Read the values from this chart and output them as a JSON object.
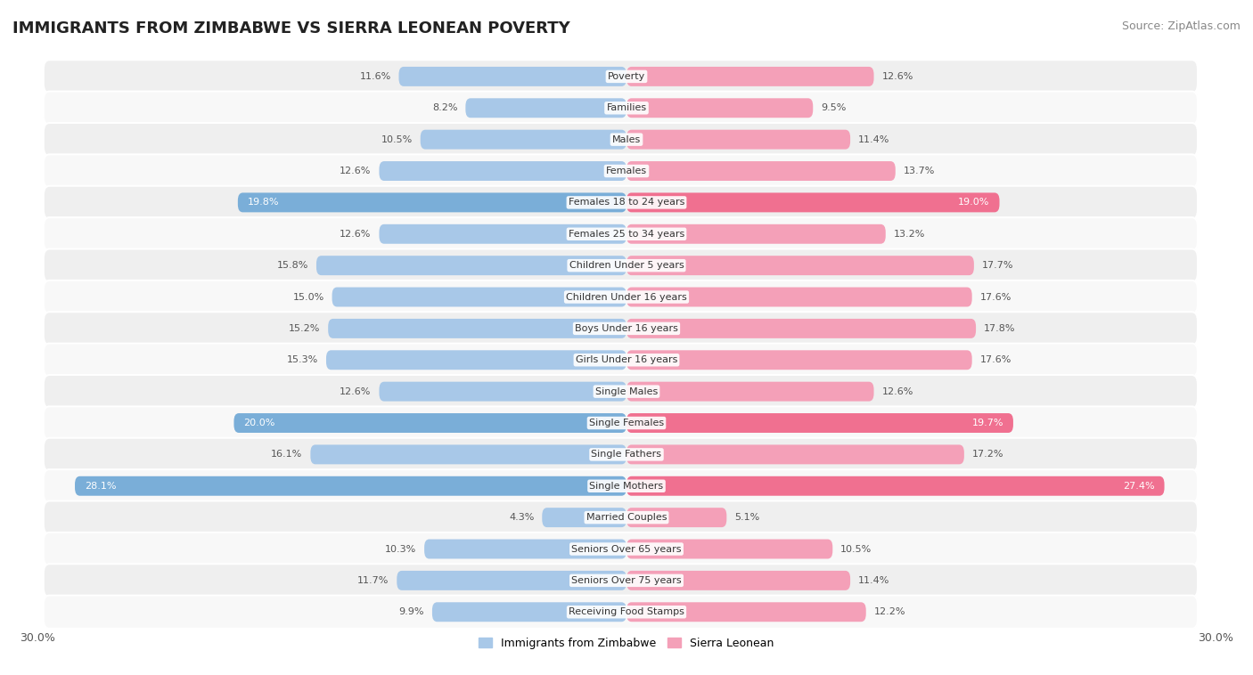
{
  "title": "IMMIGRANTS FROM ZIMBABWE VS SIERRA LEONEAN POVERTY",
  "source": "Source: ZipAtlas.com",
  "categories": [
    "Poverty",
    "Families",
    "Males",
    "Females",
    "Females 18 to 24 years",
    "Females 25 to 34 years",
    "Children Under 5 years",
    "Children Under 16 years",
    "Boys Under 16 years",
    "Girls Under 16 years",
    "Single Males",
    "Single Females",
    "Single Fathers",
    "Single Mothers",
    "Married Couples",
    "Seniors Over 65 years",
    "Seniors Over 75 years",
    "Receiving Food Stamps"
  ],
  "zimbabwe_values": [
    11.6,
    8.2,
    10.5,
    12.6,
    19.8,
    12.6,
    15.8,
    15.0,
    15.2,
    15.3,
    12.6,
    20.0,
    16.1,
    28.1,
    4.3,
    10.3,
    11.7,
    9.9
  ],
  "sierraleone_values": [
    12.6,
    9.5,
    11.4,
    13.7,
    19.0,
    13.2,
    17.7,
    17.6,
    17.8,
    17.6,
    12.6,
    19.7,
    17.2,
    27.4,
    5.1,
    10.5,
    11.4,
    12.2
  ],
  "zimbabwe_color_normal": "#a8c8e8",
  "sierraleone_color_normal": "#f4a0b8",
  "zimbabwe_color_highlight": "#7aaed8",
  "sierraleone_color_highlight": "#f07090",
  "row_bg_even": "#efefef",
  "row_bg_odd": "#f8f8f8",
  "axis_limit": 30.0,
  "legend_label_zimbabwe": "Immigrants from Zimbabwe",
  "legend_label_sierraleone": "Sierra Leonean",
  "highlight_threshold": 18.0,
  "title_fontsize": 13,
  "label_fontsize": 8,
  "value_fontsize": 8
}
